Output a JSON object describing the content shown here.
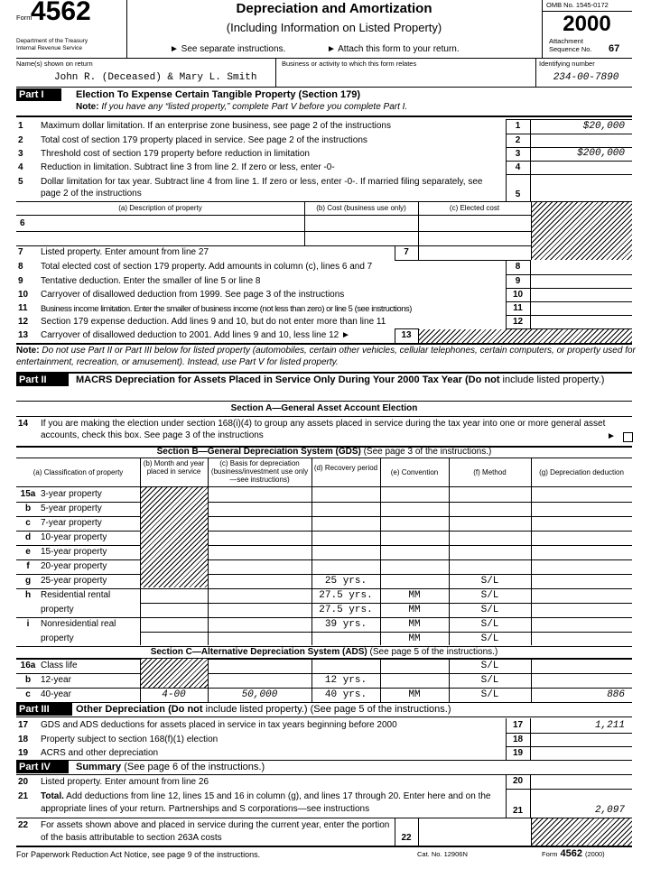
{
  "header": {
    "form_label": "Form",
    "form_number": "4562",
    "dept": "Department of the Treasury",
    "irs": "Internal Revenue Service",
    "title": "Depreciation and Amortization",
    "subtitle": "(Including Information on Listed Property)",
    "instr1": "► See separate instructions.",
    "instr2": "► Attach this form to your return.",
    "omb": "OMB No. 1545-0172",
    "year": "2000",
    "attachment": "Attachment",
    "sequence_label": "Sequence No.",
    "sequence_no": "67"
  },
  "taxpayer": {
    "name_label": "Name(s) shown on return",
    "name": "John R. (Deceased) & Mary L. Smith",
    "business_label": "Business or activity to which this form relates",
    "business": "",
    "id_label": "Identifying number",
    "id": "234-00-7890"
  },
  "part1": {
    "label": "Part I",
    "title": "Election To Expense Certain Tangible Property (Section 179)",
    "note_bold": "Note:",
    "note_text": " If you have any “listed property,” complete Part V before you complete Part I.",
    "lines": [
      {
        "num": "1",
        "text": "Maximum dollar limitation. If an enterprise zone business, see page 2 of the instructions",
        "box": "1",
        "value": "$20,000"
      },
      {
        "num": "2",
        "text": "Total cost of section 179 property placed in service. See page 2 of the instructions",
        "box": "2",
        "value": ""
      },
      {
        "num": "3",
        "text": "Threshold cost of section 179 property before reduction in limitation",
        "box": "3",
        "value": "$200,000"
      },
      {
        "num": "4",
        "text": "Reduction in limitation. Subtract line 3 from line 2. If zero or less, enter -0-",
        "box": "4",
        "value": ""
      },
      {
        "num": "5",
        "text": "Dollar limitation for tax year. Subtract line 4 from line 1. If zero or less, enter -0-. If married filing separately, see page 2 of the instructions",
        "box": "5",
        "value": ""
      },
      {
        "num": "7",
        "text": "Listed property. Enter amount from line 27",
        "box": "7",
        "value": ""
      },
      {
        "num": "8",
        "text": "Total elected cost of section 179 property. Add amounts in column (c), lines 6 and 7",
        "box": "8",
        "value": ""
      },
      {
        "num": "9",
        "text": "Tentative deduction. Enter the smaller of line 5 or line 8",
        "box": "9",
        "value": ""
      },
      {
        "num": "10",
        "text": "Carryover of disallowed deduction from 1999. See page 3 of the instructions",
        "box": "10",
        "value": ""
      },
      {
        "num": "11",
        "text": "Business income limitation. Enter the smaller of business income (not less than zero) or line 5 (see instructions)",
        "box": "11",
        "value": ""
      },
      {
        "num": "12",
        "text": "Section 179 expense deduction. Add lines 9 and 10, but do not enter more than line 11",
        "box": "12",
        "value": ""
      },
      {
        "num": "13",
        "text": "Carryover of disallowed deduction to 2001. Add lines 9 and 10, less line 12 ►",
        "box": "13",
        "value": ""
      }
    ],
    "line6": {
      "num": "6",
      "headers": [
        "(a) Description of property",
        "(b) Cost (business use only)",
        "(c) Elected cost"
      ],
      "rows": [
        [
          "",
          "",
          ""
        ],
        [
          "",
          "",
          ""
        ]
      ]
    }
  },
  "note": {
    "bold": "Note:",
    "text": " Do not use Part II or Part III below for listed property (automobiles, certain other vehicles, cellular telephones, certain computers, or property used for entertainment, recreation, or amusement). Instead, use Part V for listed property."
  },
  "part2": {
    "label": "Part II",
    "title_bold": "MACRS Depreciation for Assets Placed in Service Only During Your 2000 Tax Year (Do not",
    "title_rest": " include listed property.)",
    "section_a": "Section A—General Asset Account Election",
    "line14_num": "14",
    "line14_text": "If you are making the election under section 168(i)(4) to group any assets placed in service during the tax year into one or more general asset accounts, check this box. See page 3 of the instructions",
    "line14_checked": false,
    "section_b_bold": "Section B—General Depreciation System (GDS)",
    "section_b_rest": " (See page 3 of the instructions.)",
    "columns": [
      "(a)  Classification of property",
      "(b) Month and year placed in service",
      "(c) Basis for depreciation (business/investment use only—see instructions)",
      "(d) Recovery period",
      "(e) Convention",
      "(f) Method",
      "(g) Depreciation deduction"
    ],
    "gds_rows": [
      {
        "num": "15a",
        "label": "3-year property",
        "b": "",
        "c": "",
        "d": "",
        "e": "",
        "f": "",
        "g": ""
      },
      {
        "num": "b",
        "label": "5-year property",
        "b": "",
        "c": "",
        "d": "",
        "e": "",
        "f": "",
        "g": ""
      },
      {
        "num": "c",
        "label": "7-year property",
        "b": "",
        "c": "",
        "d": "",
        "e": "",
        "f": "",
        "g": ""
      },
      {
        "num": "d",
        "label": "10-year property",
        "b": "",
        "c": "",
        "d": "",
        "e": "",
        "f": "",
        "g": ""
      },
      {
        "num": "e",
        "label": "15-year property",
        "b": "",
        "c": "",
        "d": "",
        "e": "",
        "f": "",
        "g": ""
      },
      {
        "num": "f",
        "label": "20-year property",
        "b": "",
        "c": "",
        "d": "",
        "e": "",
        "f": "",
        "g": ""
      },
      {
        "num": "g",
        "label": "25-year property",
        "b": "",
        "c": "",
        "d": "25 yrs.",
        "e": "",
        "f": "S/L",
        "g": ""
      },
      {
        "num": "h",
        "label": "Residential rental property",
        "sub": [
          {
            "b": "",
            "c": "",
            "d": "27.5 yrs.",
            "e": "MM",
            "f": "S/L",
            "g": ""
          },
          {
            "b": "",
            "c": "",
            "d": "27.5 yrs.",
            "e": "MM",
            "f": "S/L",
            "g": ""
          }
        ]
      },
      {
        "num": "i",
        "label": "Nonresidential real property",
        "sub": [
          {
            "b": "",
            "c": "",
            "d": "39 yrs.",
            "e": "MM",
            "f": "S/L",
            "g": ""
          },
          {
            "b": "",
            "c": "",
            "d": "",
            "e": "MM",
            "f": "S/L",
            "g": ""
          }
        ]
      }
    ],
    "section_c_bold": "Section C—Alternative Depreciation System (ADS)",
    "section_c_rest": " (See page 5 of the instructions.)",
    "ads_rows": [
      {
        "num": "16a",
        "label": "Class life",
        "b": "",
        "c": "",
        "d": "",
        "e": "",
        "f": "S/L",
        "g": ""
      },
      {
        "num": "b",
        "label": "12-year",
        "b": "",
        "c": "",
        "d": "12 yrs.",
        "e": "",
        "f": "S/L",
        "g": ""
      },
      {
        "num": "c",
        "label": "40-year",
        "b": "4-00",
        "c": "50,000",
        "d": "40 yrs.",
        "e": "MM",
        "f": "S/L",
        "g": "886"
      }
    ]
  },
  "part3": {
    "label": "Part III",
    "title_bold": "Other Depreciation (Do not",
    "title_rest": " include listed property.) (See page 5 of the instructions.)",
    "lines": [
      {
        "num": "17",
        "text": "GDS and ADS deductions for assets placed in service in tax years beginning before 2000",
        "box": "17",
        "value": "1,211"
      },
      {
        "num": "18",
        "text": "Property subject to section 168(f)(1) election",
        "box": "18",
        "value": ""
      },
      {
        "num": "19",
        "text": "ACRS and other depreciation",
        "box": "19",
        "value": ""
      }
    ]
  },
  "part4": {
    "label": "Part IV",
    "title_bold": "Summary",
    "title_rest": " (See page 6 of the instructions.)",
    "line20": {
      "num": "20",
      "text": "Listed property. Enter amount from line 26",
      "box": "20",
      "value": ""
    },
    "line21": {
      "num": "21",
      "bold": "Total.",
      "text": " Add deductions from line 12, lines 15 and 16 in column (g), and lines 17 through 20. Enter here and on the appropriate lines of your return. Partnerships and S corporations—see instructions",
      "box": "21",
      "value": "2,097"
    },
    "line22": {
      "num": "22",
      "text": "For assets shown above and placed in service during the current year, enter the portion of the basis attributable to section 263A costs",
      "box": "22",
      "value": ""
    }
  },
  "footer": {
    "paperwork": "For Paperwork Reduction Act Notice, see page 9 of the instructions.",
    "cat": "Cat. No. 12906N",
    "form_label": "Form",
    "form_number": "4562",
    "year": "(2000)"
  }
}
